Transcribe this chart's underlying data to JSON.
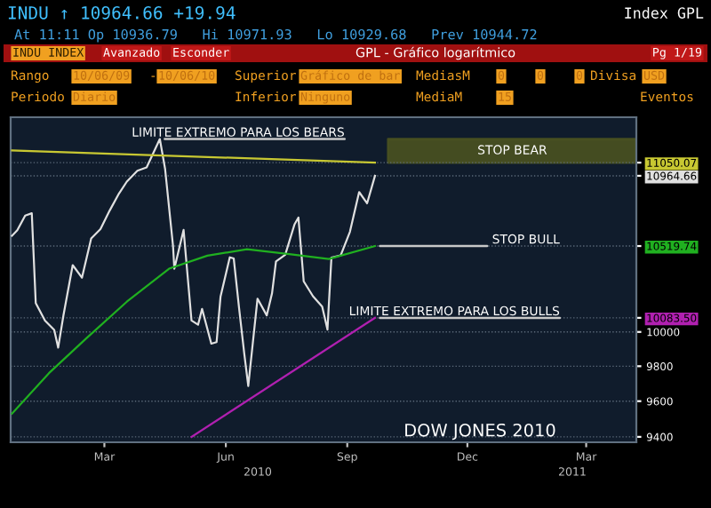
{
  "chart_data": {
    "type": "line",
    "title": "GPL - Gráfico logarítmico",
    "x": [
      "2010-01-04",
      "2010-01-08",
      "2010-01-14",
      "2010-01-19",
      "2010-01-22",
      "2010-01-29",
      "2010-02-05",
      "2010-02-08",
      "2010-02-12",
      "2010-02-19",
      "2010-02-26",
      "2010-03-05",
      "2010-03-12",
      "2010-03-19",
      "2010-03-26",
      "2010-04-01",
      "2010-04-09",
      "2010-04-16",
      "2010-04-26",
      "2010-04-30",
      "2010-05-06",
      "2010-05-07",
      "2010-05-14",
      "2010-05-20",
      "2010-05-25",
      "2010-05-28",
      "2010-06-04",
      "2010-06-08",
      "2010-06-11",
      "2010-06-18",
      "2010-06-21",
      "2010-06-25",
      "2010-06-29",
      "2010-07-02",
      "2010-07-09",
      "2010-07-16",
      "2010-07-20",
      "2010-07-23",
      "2010-07-30",
      "2010-08-06",
      "2010-08-09",
      "2010-08-13",
      "2010-08-20",
      "2010-08-27",
      "2010-08-31",
      "2010-09-03",
      "2010-09-10",
      "2010-09-17",
      "2010-09-24",
      "2010-09-30",
      "2010-10-06"
    ],
    "series": [
      {
        "color": "#e0e0e0",
        "values": [
          10584,
          10618,
          10710,
          10725,
          10172,
          10067,
          10012,
          9908,
          10099,
          10402,
          10325,
          10567,
          10625,
          10742,
          10850,
          10927,
          10997,
          11019,
          11205,
          11009,
          10520,
          10380,
          10620,
          10068,
          10043,
          10137,
          9931,
          9940,
          10211,
          10450,
          10443,
          10144,
          9870,
          9686,
          10198,
          10098,
          10230,
          10425,
          10466,
          10654,
          10698,
          10303,
          10213,
          10150,
          10014,
          10448,
          10462,
          10608,
          10860,
          10788,
          10964.66
        ]
      },
      {
        "color": "#c8c832",
        "x": [
          "2010-01-04",
          "2010-10-06"
        ],
        "values": [
          11130,
          11050.07
        ]
      },
      {
        "color": "#20b020",
        "x": [
          "2010-01-04",
          "2010-02-01",
          "2010-03-01",
          "2010-04-01",
          "2010-05-03",
          "2010-06-01",
          "2010-07-01",
          "2010-08-02",
          "2010-09-01",
          "2010-10-06"
        ],
        "values": [
          9530,
          9760,
          9960,
          10180,
          10380,
          10460,
          10500,
          10470,
          10440,
          10519.74
        ]
      },
      {
        "color": "#b020b0",
        "x": [
          "2010-05-20",
          "2010-10-06"
        ],
        "values": [
          9400,
          10083.5
        ]
      }
    ],
    "log": true,
    "xlim": [
      "2010-01-03",
      "2011-04-22"
    ],
    "xticks": [
      {
        "value": "2010-03-15",
        "label": "Mar"
      },
      {
        "value": "2010-06-15",
        "label": "Jun"
      },
      {
        "value": "2010-09-15",
        "label": "Sep"
      },
      {
        "value": "2010-12-15",
        "label": "Dec"
      },
      {
        "value": "2011-03-15",
        "label": "Mar"
      }
    ],
    "ylim": [
      9370,
      11350
    ],
    "yticks": [
      9400,
      9600,
      9800,
      10000,
      {
        "value": 10083.5,
        "label": "10083.50"
      },
      {
        "value": 10519.74,
        "label": "10519.74"
      },
      {
        "value": 10964.66,
        "label": "10964.66"
      },
      {
        "value": 11050.07,
        "label": "11050.07"
      }
    ],
    "grid": "y",
    "bands": [
      {
        "axis": "y",
        "from": 11050.07,
        "to": 11205,
        "label": "STOP BEAR",
        "color": "#4a5220"
      }
    ],
    "annotations": [
      {
        "text": "LIMITE EXTREMO PARA LOS BEARS",
        "x": "2010-04-26",
        "y": 11205
      },
      {
        "text": "STOP BULL",
        "x": "2010-10-06",
        "y": 10519.74
      },
      {
        "text": "LIMITE EXTREMO PARA LOS BULLS",
        "x": "2010-10-06",
        "y": 10083.5
      },
      "DOW JONES 2010",
      "2010",
      "2011",
      "INDU ↑ 10964.66 +19.94",
      "At 11:11 Op 10936.79   Hi 10971.93   Lo 10929.68   Prev 10944.72",
      "Index GPL",
      "INDU INDEX",
      "Avanzado",
      "Esconder",
      "Pg 1/19",
      "Rango",
      "10/06/09",
      "-",
      "10/06/10",
      "Superior",
      "Gráfico de bar",
      "MediasM",
      "0",
      "0",
      "0",
      "Divisa",
      "USD",
      "Periodo",
      "Diario",
      "Inferior",
      "Ninguno",
      "MediaM",
      "15",
      "Eventos"
    ]
  }
}
